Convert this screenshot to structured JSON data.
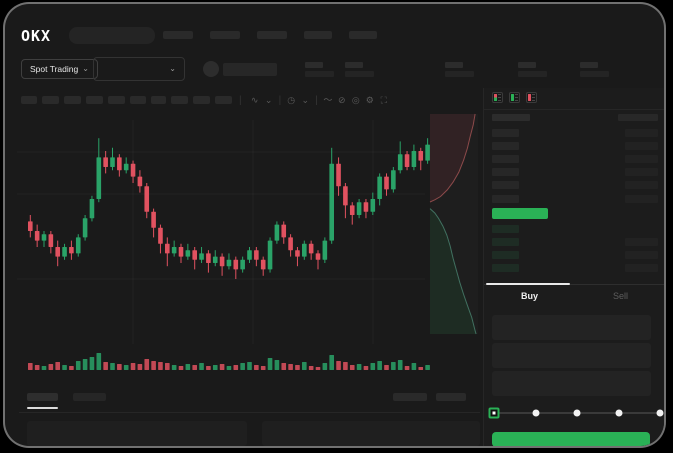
{
  "topnav": {
    "logo": "OKX",
    "search_placeholder": "",
    "items": [
      30,
      30,
      30,
      28,
      28
    ]
  },
  "market_selector": {
    "label": "Spot Trading",
    "chevron": "⌄"
  },
  "pair_selector": {
    "chevron": "⌄"
  },
  "header_stats": {
    "pairs": 5
  },
  "chart_toolbar": {
    "blocks": [
      16,
      17,
      17,
      17,
      17,
      16,
      15,
      17,
      17,
      17
    ],
    "icons": [
      {
        "name": "candle-type-icon",
        "glyph": "∿"
      },
      {
        "name": "chevron-down-icon",
        "glyph": "⌄"
      },
      {
        "name": "divider",
        "glyph": "|"
      },
      {
        "name": "indicator-icon",
        "glyph": "◷"
      },
      {
        "name": "chevron-down-icon",
        "glyph": "⌄"
      },
      {
        "name": "divider",
        "glyph": "|"
      },
      {
        "name": "line-tool-icon",
        "glyph": "〜"
      },
      {
        "name": "ruler-icon",
        "glyph": "⊘"
      },
      {
        "name": "snapshot-icon",
        "glyph": "◎"
      },
      {
        "name": "settings-icon",
        "glyph": "⚙"
      },
      {
        "name": "fullscreen-icon",
        "glyph": "⛶"
      }
    ]
  },
  "chart_data": {
    "type": "candlestick",
    "grid": true,
    "price_range": [
      108,
      154
    ],
    "colors": {
      "up": "#2aa368",
      "down": "#e15260"
    },
    "candles": [
      [
        127,
        129,
        122,
        124
      ],
      [
        124,
        126,
        119,
        121
      ],
      [
        121,
        124,
        119,
        123
      ],
      [
        123,
        124,
        117,
        119
      ],
      [
        119,
        121,
        113,
        116
      ],
      [
        116,
        120,
        115,
        119
      ],
      [
        119,
        121,
        115,
        117
      ],
      [
        117,
        123,
        116,
        122
      ],
      [
        122,
        129,
        121,
        128
      ],
      [
        128,
        135,
        127,
        134
      ],
      [
        134,
        153,
        133,
        147
      ],
      [
        147,
        149,
        142,
        144
      ],
      [
        144,
        150,
        143,
        147
      ],
      [
        147,
        148,
        141,
        143
      ],
      [
        143,
        147,
        142,
        145
      ],
      [
        145,
        146,
        139,
        141
      ],
      [
        141,
        143,
        136,
        138
      ],
      [
        138,
        139,
        128,
        130
      ],
      [
        130,
        131,
        122,
        125
      ],
      [
        125,
        126,
        117,
        120
      ],
      [
        120,
        122,
        113,
        117
      ],
      [
        117,
        121,
        116,
        119
      ],
      [
        119,
        120,
        114,
        116
      ],
      [
        116,
        120,
        115,
        118
      ],
      [
        118,
        119,
        112,
        115
      ],
      [
        115,
        119,
        114,
        117
      ],
      [
        117,
        118,
        111,
        114
      ],
      [
        114,
        118,
        113,
        116
      ],
      [
        116,
        117,
        110,
        113
      ],
      [
        113,
        117,
        112,
        115
      ],
      [
        115,
        116,
        109,
        112
      ],
      [
        112,
        116,
        111,
        115
      ],
      [
        115,
        119,
        114,
        118
      ],
      [
        118,
        119,
        113,
        115
      ],
      [
        115,
        116,
        110,
        112
      ],
      [
        112,
        122,
        111,
        121
      ],
      [
        121,
        127,
        120,
        126
      ],
      [
        126,
        127,
        120,
        122
      ],
      [
        122,
        123,
        116,
        118
      ],
      [
        118,
        119,
        113,
        116
      ],
      [
        116,
        121,
        115,
        120
      ],
      [
        120,
        121,
        115,
        117
      ],
      [
        117,
        118,
        112,
        115
      ],
      [
        115,
        122,
        114,
        121
      ],
      [
        121,
        150,
        120,
        145
      ],
      [
        145,
        147,
        135,
        138
      ],
      [
        138,
        139,
        128,
        132
      ],
      [
        132,
        133,
        126,
        129
      ],
      [
        129,
        134,
        128,
        133
      ],
      [
        133,
        134,
        128,
        130
      ],
      [
        130,
        136,
        129,
        134
      ],
      [
        134,
        142,
        132,
        141
      ],
      [
        141,
        142,
        135,
        137
      ],
      [
        137,
        144,
        136,
        143
      ],
      [
        143,
        152,
        142,
        148
      ],
      [
        148,
        149,
        143,
        144
      ],
      [
        144,
        151,
        143,
        149
      ],
      [
        149,
        150,
        143,
        146
      ],
      [
        146,
        153,
        145,
        151
      ]
    ],
    "volumes": [
      7,
      5,
      4,
      6,
      8,
      5,
      4,
      9,
      11,
      13,
      17,
      8,
      7,
      6,
      5,
      7,
      6,
      11,
      9,
      8,
      7,
      5,
      4,
      6,
      5,
      7,
      4,
      5,
      6,
      4,
      5,
      7,
      8,
      5,
      4,
      12,
      10,
      7,
      6,
      5,
      8,
      4,
      3,
      7,
      15,
      9,
      8,
      5,
      6,
      4,
      7,
      9,
      5,
      8,
      10,
      4,
      7,
      3,
      5
    ],
    "depth": {
      "asks": [
        [
          0.94,
          0
        ],
        [
          0.9,
          0.05
        ],
        [
          0.84,
          0.1
        ],
        [
          0.78,
          0.155
        ],
        [
          0.7,
          0.21
        ],
        [
          0.6,
          0.265
        ],
        [
          0.48,
          0.31
        ],
        [
          0.36,
          0.345
        ],
        [
          0.22,
          0.375
        ],
        [
          0.1,
          0.39
        ],
        [
          0,
          0.4
        ]
      ],
      "bids": [
        [
          0,
          0.43
        ],
        [
          0.1,
          0.45
        ],
        [
          0.18,
          0.475
        ],
        [
          0.27,
          0.51
        ],
        [
          0.35,
          0.55
        ],
        [
          0.42,
          0.6
        ],
        [
          0.48,
          0.655
        ],
        [
          0.55,
          0.71
        ],
        [
          0.62,
          0.765
        ],
        [
          0.7,
          0.82
        ],
        [
          0.78,
          0.87
        ],
        [
          0.87,
          0.925
        ],
        [
          0.94,
          0.985
        ],
        [
          0.96,
          1
        ]
      ]
    }
  },
  "orderbook": {
    "header": {
      "left_w": 38,
      "right_w": 40
    },
    "asks": [
      {
        "p": 27,
        "a": 33
      },
      {
        "p": 27,
        "a": 33
      },
      {
        "p": 27,
        "a": 33
      },
      {
        "p": 27,
        "a": 33
      },
      {
        "p": 27,
        "a": 33
      },
      {
        "p": 27,
        "a": 33
      }
    ],
    "last_price_color": "#2ab156",
    "bids": [
      {
        "p": 27,
        "a": 0
      },
      {
        "p": 27,
        "a": 33
      },
      {
        "p": 27,
        "a": 33
      },
      {
        "p": 27,
        "a": 33
      }
    ]
  },
  "trade_panel": {
    "tabs": {
      "buy": "Buy",
      "sell": "Sell",
      "active": "Buy"
    },
    "inputs": 3,
    "slider": {
      "stops": 5,
      "active_index": 0
    },
    "submit_color": "#2ab156"
  },
  "bottom_bar": {
    "tabs": [
      31,
      33
    ],
    "active_tab_index": 0,
    "right_blocks": [
      34,
      30
    ]
  },
  "colors": {
    "accent_green": "#2ab156",
    "candle_up": "#2aa368",
    "candle_down": "#e15260",
    "background": "#1a1a1a"
  }
}
